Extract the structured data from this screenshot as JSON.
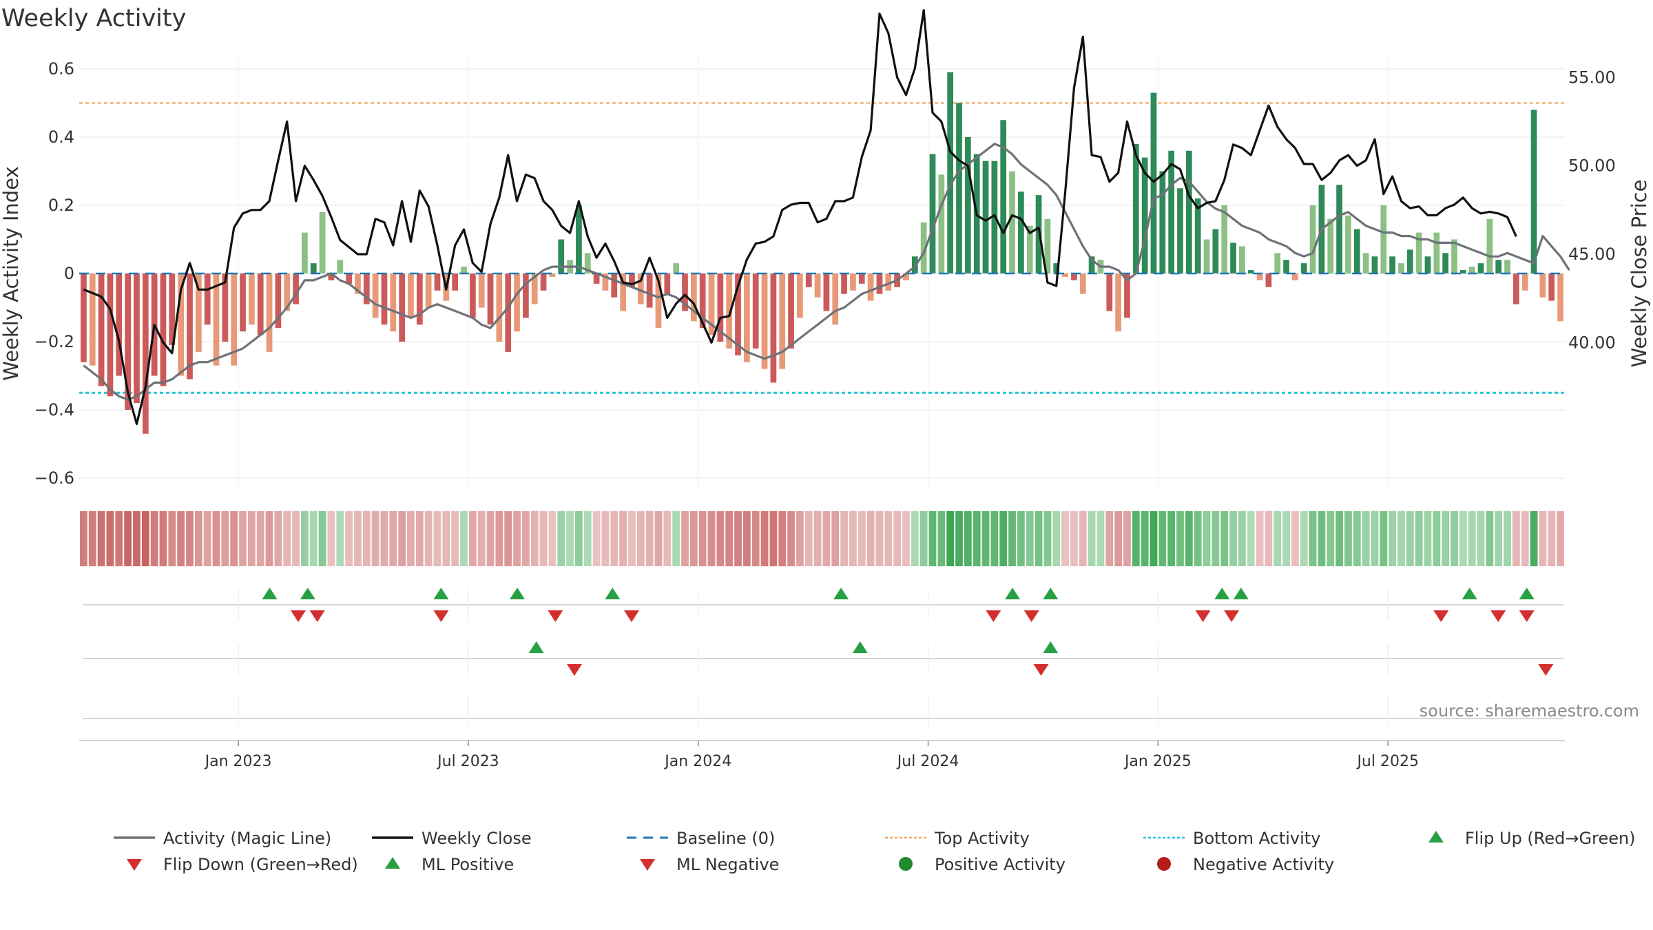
{
  "title": "Weekly Activity",
  "source": "source: sharemaestro.com",
  "chart_data": {
    "type": "bar",
    "ylabel": "Weekly Activity Index",
    "ylabel_right": "Weekly Close Price",
    "ylim": [
      -0.63,
      0.6
    ],
    "ylim_right": [
      36,
      60.5
    ],
    "yticks": [
      "0.6",
      "0.4",
      "0.2",
      "0",
      "−0.2",
      "−0.4",
      "−0.6"
    ],
    "yticks_right": [
      "60.00",
      "55.00",
      "50.00",
      "45.00",
      "40.00"
    ],
    "xticks": [
      "Jan 2023",
      "Jul 2023",
      "Jan 2024",
      "Jul 2024",
      "Jan 2025",
      "Jul 2025"
    ],
    "thresholds": {
      "baseline": 0,
      "top_activity": 0.5,
      "bottom_activity": -0.35
    },
    "activity": [
      -0.26,
      -0.27,
      -0.33,
      -0.36,
      -0.3,
      -0.4,
      -0.38,
      -0.47,
      -0.3,
      -0.33,
      -0.21,
      -0.3,
      -0.31,
      -0.23,
      -0.15,
      -0.27,
      -0.2,
      -0.27,
      -0.17,
      -0.15,
      -0.18,
      -0.23,
      -0.16,
      -0.11,
      -0.09,
      0.12,
      0.03,
      0.18,
      -0.02,
      0.04,
      -0.03,
      -0.06,
      -0.09,
      -0.13,
      -0.15,
      -0.17,
      -0.2,
      -0.13,
      -0.15,
      -0.1,
      -0.05,
      -0.08,
      -0.05,
      0.02,
      -0.13,
      -0.1,
      -0.15,
      -0.2,
      -0.23,
      -0.17,
      -0.13,
      -0.09,
      -0.05,
      -0.01,
      0.1,
      0.04,
      0.2,
      0.06,
      -0.03,
      -0.05,
      -0.07,
      -0.11,
      -0.04,
      -0.09,
      -0.1,
      -0.16,
      -0.06,
      0.03,
      -0.11,
      -0.14,
      -0.16,
      -0.18,
      -0.2,
      -0.22,
      -0.24,
      -0.26,
      -0.22,
      -0.28,
      -0.32,
      -0.28,
      -0.22,
      -0.13,
      -0.04,
      -0.07,
      -0.11,
      -0.15,
      -0.06,
      -0.05,
      -0.03,
      -0.08,
      -0.06,
      -0.05,
      -0.04,
      -0.02,
      0.05,
      0.15,
      0.35,
      0.29,
      0.59,
      0.5,
      0.4,
      0.35,
      0.33,
      0.33,
      0.45,
      0.3,
      0.24,
      0.14,
      0.23,
      0.16,
      0.03,
      -0.01,
      -0.02,
      -0.06,
      0.05,
      0.04,
      -0.11,
      -0.17,
      -0.13,
      0.38,
      0.34,
      0.53,
      0.3,
      0.36,
      0.25,
      0.36,
      0.22,
      0.1,
      0.13,
      0.2,
      0.09,
      0.08,
      0.01,
      -0.02,
      -0.04,
      0.06,
      0.04,
      -0.02,
      0.03,
      0.2,
      0.26,
      0.16,
      0.26,
      0.17,
      0.13,
      0.06,
      0.05,
      0.2,
      0.05,
      0.03,
      0.07,
      0.12,
      0.05,
      0.12,
      0.06,
      0.1,
      0.01,
      0.02,
      0.03,
      0.16,
      0.04,
      0.04,
      -0.09,
      -0.05,
      0.48,
      -0.07,
      -0.08,
      -0.14
    ],
    "close": [
      43.0,
      42.8,
      42.6,
      41.9,
      40.1,
      37.2,
      35.4,
      37.5,
      41.0,
      40.0,
      39.4,
      43.0,
      44.5,
      43.0,
      43.0,
      43.2,
      43.4,
      46.5,
      47.3,
      47.5,
      47.5,
      48.0,
      50.3,
      52.5,
      48.0,
      50.0,
      49.2,
      48.3,
      47.1,
      45.8,
      45.4,
      45.0,
      45.0,
      47.0,
      46.8,
      45.5,
      48.0,
      45.7,
      48.6,
      47.7,
      45.5,
      43.0,
      45.5,
      46.4,
      44.5,
      44.0,
      46.7,
      48.2,
      50.6,
      48.0,
      49.5,
      49.3,
      48.0,
      47.5,
      46.6,
      46.2,
      48.0,
      46.0,
      44.8,
      45.6,
      44.6,
      43.4,
      43.3,
      43.5,
      44.8,
      43.5,
      41.4,
      42.2,
      42.7,
      42.2,
      41.1,
      40.0,
      41.4,
      41.5,
      43.2,
      44.7,
      45.6,
      45.7,
      46.0,
      47.5,
      47.8,
      47.9,
      47.9,
      46.8,
      47.0,
      48.0,
      48.0,
      48.2,
      50.5,
      52.0,
      58.6,
      57.5,
      55.0,
      54.0,
      55.5,
      58.8,
      53.0,
      52.5,
      50.8,
      50.3,
      50.0,
      47.2,
      46.9,
      47.2,
      46.2,
      47.2,
      47.0,
      46.2,
      46.5,
      43.4,
      43.2,
      48.5,
      54.4,
      57.3,
      50.6,
      50.5,
      49.1,
      49.6,
      52.5,
      50.6,
      49.6,
      49.1,
      49.5,
      50.1,
      49.8,
      48.3,
      47.6,
      47.9,
      48.0,
      49.2,
      51.2,
      51.0,
      50.6,
      52.0,
      53.4,
      52.2,
      51.5,
      51.0,
      50.1,
      50.1,
      49.2,
      49.6,
      50.3,
      50.6,
      50.0,
      50.3,
      51.5,
      48.4,
      49.4,
      48.0,
      47.6,
      47.7,
      47.2,
      47.2,
      47.6,
      47.8,
      48.2,
      47.6,
      47.3,
      47.4,
      47.3,
      47.1,
      46.0
    ],
    "magic_line": [
      -0.27,
      -0.29,
      -0.31,
      -0.34,
      -0.36,
      -0.37,
      -0.36,
      -0.34,
      -0.32,
      -0.32,
      -0.31,
      -0.29,
      -0.27,
      -0.26,
      -0.26,
      -0.25,
      -0.24,
      -0.23,
      -0.22,
      -0.2,
      -0.18,
      -0.16,
      -0.13,
      -0.1,
      -0.06,
      -0.02,
      -0.02,
      -0.01,
      0.0,
      -0.02,
      -0.03,
      -0.05,
      -0.07,
      -0.09,
      -0.1,
      -0.11,
      -0.12,
      -0.13,
      -0.12,
      -0.1,
      -0.09,
      -0.1,
      -0.11,
      -0.12,
      -0.13,
      -0.15,
      -0.16,
      -0.13,
      -0.1,
      -0.06,
      -0.03,
      -0.01,
      0.01,
      0.02,
      0.02,
      0.02,
      0.02,
      0.01,
      0.0,
      -0.01,
      -0.02,
      -0.03,
      -0.04,
      -0.05,
      -0.06,
      -0.07,
      -0.06,
      -0.07,
      -0.09,
      -0.11,
      -0.13,
      -0.15,
      -0.17,
      -0.19,
      -0.21,
      -0.23,
      -0.24,
      -0.25,
      -0.24,
      -0.23,
      -0.21,
      -0.19,
      -0.17,
      -0.15,
      -0.13,
      -0.11,
      -0.1,
      -0.08,
      -0.06,
      -0.05,
      -0.04,
      -0.03,
      -0.02,
      0.0,
      0.02,
      0.06,
      0.13,
      0.2,
      0.26,
      0.3,
      0.32,
      0.34,
      0.36,
      0.38,
      0.37,
      0.35,
      0.32,
      0.3,
      0.28,
      0.26,
      0.23,
      0.18,
      0.13,
      0.08,
      0.04,
      0.02,
      0.02,
      0.01,
      -0.02,
      0.0,
      0.1,
      0.22,
      0.23,
      0.26,
      0.28,
      0.27,
      0.24,
      0.21,
      0.19,
      0.18,
      0.16,
      0.14,
      0.13,
      0.12,
      0.1,
      0.09,
      0.08,
      0.06,
      0.05,
      0.06,
      0.13,
      0.15,
      0.17,
      0.18,
      0.16,
      0.14,
      0.13,
      0.12,
      0.12,
      0.11,
      0.11,
      0.1,
      0.1,
      0.09,
      0.09,
      0.09,
      0.08,
      0.07,
      0.06,
      0.05,
      0.05,
      0.06,
      0.05,
      0.04,
      0.03,
      0.11,
      0.08,
      0.05,
      0.01
    ],
    "strip_intensity": [
      -0.65,
      -0.65,
      -0.72,
      -0.75,
      -0.68,
      -0.8,
      -0.78,
      -0.82,
      -0.65,
      -0.66,
      -0.55,
      -0.62,
      -0.6,
      -0.5,
      -0.42,
      -0.52,
      -0.44,
      -0.52,
      -0.4,
      -0.38,
      -0.4,
      -0.46,
      -0.38,
      -0.3,
      -0.28,
      0.42,
      0.32,
      0.5,
      -0.22,
      0.28,
      -0.25,
      -0.28,
      -0.3,
      -0.35,
      -0.36,
      -0.38,
      -0.42,
      -0.35,
      -0.36,
      -0.3,
      -0.26,
      -0.28,
      -0.26,
      0.3,
      -0.38,
      -0.34,
      -0.4,
      -0.46,
      -0.5,
      -0.42,
      -0.38,
      -0.32,
      -0.28,
      -0.22,
      0.38,
      0.3,
      0.46,
      0.3,
      -0.22,
      -0.26,
      -0.28,
      -0.33,
      -0.24,
      -0.3,
      -0.32,
      -0.38,
      -0.26,
      0.3,
      -0.42,
      -0.48,
      -0.52,
      -0.54,
      -0.58,
      -0.6,
      -0.62,
      -0.64,
      -0.58,
      -0.66,
      -0.7,
      -0.64,
      -0.56,
      -0.42,
      -0.3,
      -0.34,
      -0.38,
      -0.42,
      -0.3,
      -0.28,
      -0.26,
      -0.32,
      -0.3,
      -0.28,
      -0.27,
      -0.24,
      0.3,
      0.45,
      0.72,
      0.66,
      0.92,
      0.85,
      0.8,
      0.75,
      0.72,
      0.72,
      0.82,
      0.7,
      0.62,
      0.5,
      0.6,
      0.52,
      0.32,
      -0.22,
      -0.24,
      -0.3,
      0.32,
      0.3,
      -0.4,
      -0.46,
      -0.42,
      0.78,
      0.74,
      0.9,
      0.7,
      0.76,
      0.62,
      0.76,
      0.6,
      0.45,
      0.5,
      0.58,
      0.42,
      0.4,
      0.28,
      -0.24,
      -0.26,
      0.32,
      0.3,
      -0.24,
      0.3,
      0.58,
      0.64,
      0.52,
      0.64,
      0.54,
      0.5,
      0.4,
      0.38,
      0.58,
      0.38,
      0.34,
      0.4,
      0.46,
      0.38,
      0.46,
      0.4,
      0.44,
      0.3,
      0.32,
      0.34,
      0.52,
      0.36,
      0.36,
      -0.3,
      -0.26,
      0.85,
      -0.28,
      -0.3,
      -0.36
    ],
    "flip_up": [
      1,
      3,
      4,
      11,
      20,
      33,
      46,
      51,
      66,
      78,
      82,
      96,
      106,
      108,
      110,
      112,
      133,
      134,
      148,
      161,
      165,
      170
    ],
    "flip_down": [
      5,
      6,
      13,
      27,
      31,
      35,
      47,
      53,
      55,
      62,
      72,
      81,
      85,
      92,
      103,
      107,
      110,
      112,
      114,
      116,
      117,
      118,
      133,
      134,
      154,
      157,
      162,
      165,
      168
    ],
    "marks": {
      "row1_up": [
        10,
        12,
        19,
        23,
        28,
        40,
        49,
        51,
        60,
        61,
        73,
        76
      ],
      "row1_down": [
        11.5,
        12.5,
        19,
        25,
        29,
        48,
        50,
        59,
        60.5,
        71.5,
        74.5,
        76
      ],
      "row2_up": [
        24,
        41,
        51
      ],
      "row2_down": [
        26,
        50.5,
        77
      ]
    },
    "legend": [
      {
        "label": "Activity (Magic Line)",
        "symbol": "line",
        "color": "#6e7279"
      },
      {
        "label": "Weekly Close",
        "symbol": "line",
        "color": "#111111"
      },
      {
        "label": "Baseline (0)",
        "symbol": "dash",
        "color": "#1f77b4"
      },
      {
        "label": "Top Activity",
        "symbol": "dot-line",
        "color": "#f0a860"
      },
      {
        "label": "Bottom Activity",
        "symbol": "dot-line",
        "color": "#26c6da"
      },
      {
        "label": "Flip Up (Red→Green)",
        "symbol": "triangle-up",
        "color": "#27a043"
      },
      {
        "label": "Flip Down (Green→Red)",
        "symbol": "triangle-down",
        "color": "#d32f2f"
      },
      {
        "label": "ML Positive",
        "symbol": "triangle-up",
        "color": "#27a043"
      },
      {
        "label": "ML Negative",
        "symbol": "triangle-down",
        "color": "#d32f2f"
      },
      {
        "label": "Positive Activity",
        "symbol": "circle",
        "color": "#1e8a2e"
      },
      {
        "label": "Negative Activity",
        "symbol": "circle",
        "color": "#b71c1c"
      }
    ],
    "colors": {
      "pos_strong": "#2e8b57",
      "pos_light": "#8cc084",
      "neg_strong": "#cc5a5a",
      "neg_light": "#e89a78",
      "close": "#111111",
      "magic": "#6e7279",
      "baseline": "#1f77b4",
      "top": "#f0a860",
      "bottom": "#26c6da",
      "up": "#27a043",
      "down": "#d32f2f"
    }
  }
}
